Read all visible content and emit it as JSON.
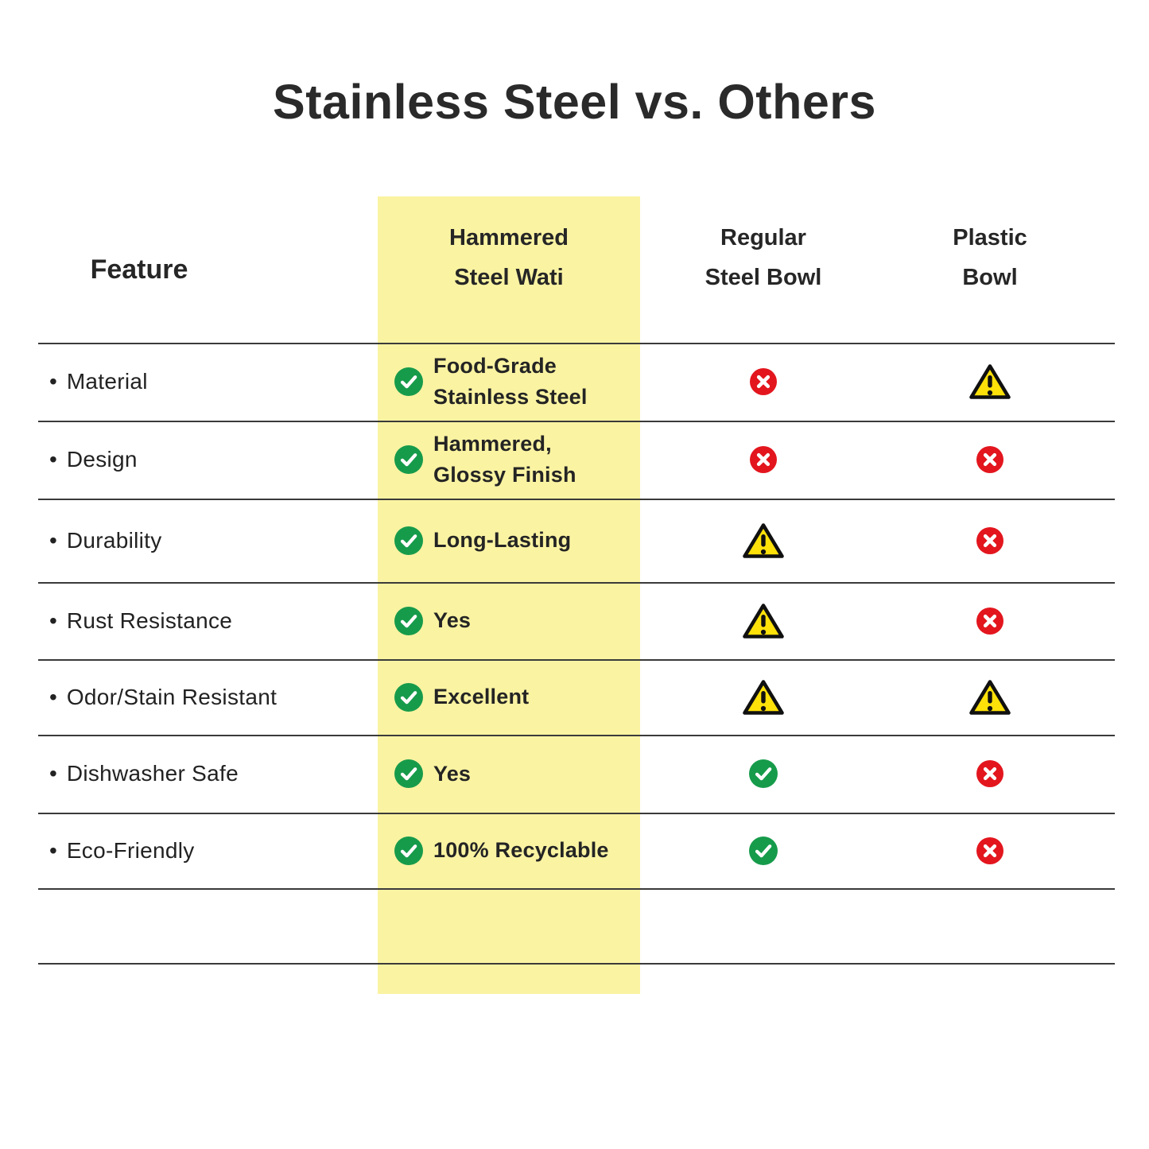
{
  "title": "Stainless Steel vs. Others",
  "bullet_char": "•",
  "header": {
    "feature": "Feature",
    "columns": [
      {
        "id": "hammered",
        "line1": "Hammered",
        "line2": "Steel Wati",
        "highlighted": true
      },
      {
        "id": "regular",
        "line1": "Regular",
        "line2": "Steel Bowl",
        "highlighted": false
      },
      {
        "id": "plastic",
        "line1": "Plastic",
        "line2": "Bowl",
        "highlighted": false
      }
    ]
  },
  "rows": [
    {
      "feature": "Material",
      "hammered": {
        "icon": "check-circle",
        "line1": "Food-Grade",
        "line2": "Stainless Steel"
      },
      "regular": {
        "icon": "cross-circle"
      },
      "plastic": {
        "icon": "warning-triangle"
      }
    },
    {
      "feature": "Design",
      "hammered": {
        "icon": "check-circle",
        "line1": "Hammered,",
        "line2": "Glossy Finish"
      },
      "regular": {
        "icon": "cross-circle"
      },
      "plastic": {
        "icon": "cross-circle"
      }
    },
    {
      "feature": "Durability",
      "hammered": {
        "icon": "check-circle",
        "line1": "Long-Lasting"
      },
      "regular": {
        "icon": "warning-triangle"
      },
      "plastic": {
        "icon": "cross-circle"
      }
    },
    {
      "feature": "Rust Resistance",
      "hammered": {
        "icon": "check-circle",
        "line1": "Yes"
      },
      "regular": {
        "icon": "warning-triangle"
      },
      "plastic": {
        "icon": "cross-circle"
      }
    },
    {
      "feature": "Odor/Stain Resistant",
      "hammered": {
        "icon": "check-circle",
        "line1": "Excellent"
      },
      "regular": {
        "icon": "warning-triangle"
      },
      "plastic": {
        "icon": "warning-triangle"
      }
    },
    {
      "feature": "Dishwasher Safe",
      "hammered": {
        "icon": "check-circle",
        "line1": "Yes"
      },
      "regular": {
        "icon": "check-circle"
      },
      "plastic": {
        "icon": "cross-circle"
      }
    },
    {
      "feature": "Eco-Friendly",
      "hammered": {
        "icon": "check-circle",
        "line1": "100% Recyclable"
      },
      "regular": {
        "icon": "check-circle"
      },
      "plastic": {
        "icon": "cross-circle"
      }
    }
  ],
  "colors": {
    "highlight_band": "#FAF3A2",
    "check_green": "#169B4B",
    "cross_red": "#E3161E",
    "warning_yellow": "#FFE10A",
    "divider": "#3A3A3A",
    "text": "#262626",
    "background": "#FFFFFF"
  },
  "chart_data": {
    "type": "table",
    "title": "Stainless Steel vs. Others",
    "columns": [
      "Feature",
      "Hammered Steel Wati",
      "Regular Steel Bowl",
      "Plastic Bowl"
    ],
    "highlighted_column": "Hammered Steel Wati",
    "rows": [
      [
        "Material",
        "check: Food-Grade Stainless Steel",
        "cross",
        "warning"
      ],
      [
        "Design",
        "check: Hammered, Glossy Finish",
        "cross",
        "cross"
      ],
      [
        "Durability",
        "check: Long-Lasting",
        "warning",
        "cross"
      ],
      [
        "Rust Resistance",
        "check: Yes",
        "warning",
        "cross"
      ],
      [
        "Odor/Stain Resistant",
        "check: Excellent",
        "warning",
        "warning"
      ],
      [
        "Dishwasher Safe",
        "check: Yes",
        "check",
        "cross"
      ],
      [
        "Eco-Friendly",
        "check: 100% Recyclable",
        "check",
        "cross"
      ]
    ],
    "icon_legend": {
      "check": "positive (green check circle)",
      "cross": "negative (red cross circle)",
      "warning": "caution (yellow warning triangle)"
    }
  }
}
